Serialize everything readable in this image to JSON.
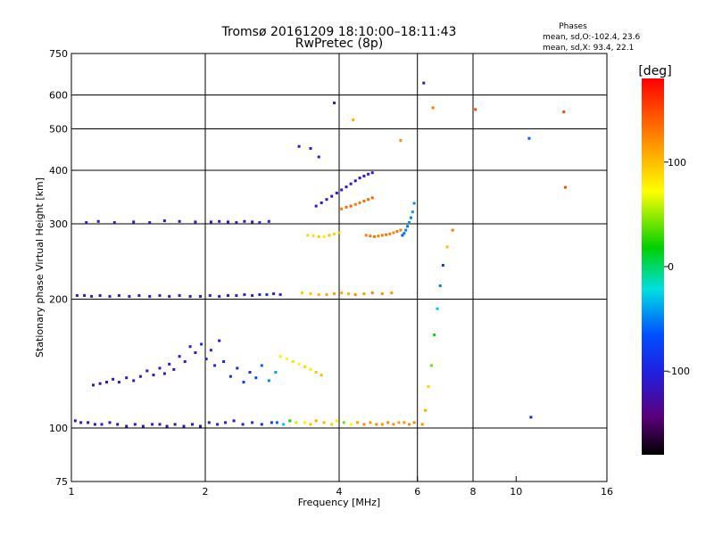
{
  "chart_data": {
    "type": "scatter",
    "title": "Tromsø 20161209 18:10:00–18:11:43",
    "subtitle": "RwPretec (8p)",
    "xlabel": "Frequency [MHz]",
    "ylabel": "Stationary phase Virtual Height [km]",
    "x_scale": "log2",
    "y_scale": "log",
    "xlim": [
      1,
      16
    ],
    "ylim": [
      75,
      750
    ],
    "x_ticks": [
      1,
      2,
      4,
      6,
      8,
      10,
      16
    ],
    "x_tick_labels": [
      "1",
      "2",
      "4",
      "6",
      "8",
      "10",
      "16"
    ],
    "x_gridlines": [
      2,
      4,
      6,
      8
    ],
    "y_ticks": [
      75,
      100,
      200,
      300,
      400,
      500,
      600,
      750
    ],
    "y_tick_labels": [
      "75",
      "100",
      "200",
      "300",
      "400",
      "500",
      "600",
      "750"
    ],
    "y_gridlines": [
      100,
      200,
      300,
      400,
      500,
      600
    ],
    "grid": true,
    "stats": {
      "heading": "Phases",
      "line1": "mean, sd,O:-102.4, 23.6",
      "line2": "mean, sd,X:  93.4, 22.1"
    },
    "colorbar": {
      "label": "[deg]",
      "range": [
        -180,
        180
      ],
      "ticks": [
        100,
        0,
        -100
      ],
      "tick_labels": [
        "100",
        "0",
        "-100"
      ]
    },
    "series": [
      {
        "x": [
          1.02,
          1.05,
          1.09,
          1.13,
          1.17,
          1.22,
          1.27,
          1.33,
          1.39,
          1.45,
          1.52,
          1.58,
          1.64,
          1.71,
          1.79,
          1.87,
          1.95,
          2.04,
          2.13,
          2.22,
          2.32,
          2.43,
          2.55,
          2.68,
          2.82
        ],
        "y": [
          104,
          103,
          103,
          102,
          102,
          103,
          102,
          101,
          102,
          101,
          102,
          102,
          101,
          102,
          101,
          102,
          101,
          103,
          102,
          103,
          104,
          102,
          103,
          102,
          103
        ],
        "c": [
          -120,
          -118,
          -125,
          -115,
          -110,
          -112,
          -122,
          -118,
          -105,
          -110,
          -108,
          -115,
          -120,
          -117,
          -112,
          -110,
          -125,
          -118,
          -100,
          -112,
          -115,
          -108,
          -90,
          -95,
          -80
        ]
      },
      {
        "x": [
          2.9,
          3.0,
          3.1,
          3.2,
          3.35,
          3.45,
          3.55,
          3.7,
          3.85,
          3.95,
          4.1,
          4.25,
          4.4,
          4.55,
          4.7,
          4.85,
          5.0,
          5.15,
          5.3,
          5.45,
          5.6,
          5.75,
          5.9
        ],
        "y": [
          103,
          102,
          104,
          103,
          103,
          102,
          104,
          103,
          102,
          104,
          103,
          102,
          103,
          102,
          103,
          102,
          102,
          103,
          102,
          103,
          103,
          102,
          103
        ],
        "c": [
          -60,
          -30,
          20,
          60,
          80,
          100,
          110,
          105,
          95,
          80,
          40,
          70,
          110,
          120,
          115,
          120,
          118,
          125,
          120,
          115,
          118,
          122,
          125
        ]
      },
      {
        "x": [
          1.12,
          1.16,
          1.2,
          1.24,
          1.28,
          1.33,
          1.38,
          1.43,
          1.48,
          1.53,
          1.58,
          1.62,
          1.66,
          1.7,
          1.75,
          1.8,
          1.85,
          1.9,
          1.96,
          2.01,
          2.06,
          2.1,
          2.15,
          2.2,
          2.28,
          2.36,
          2.44,
          2.52,
          2.6,
          2.68,
          2.78,
          2.88
        ],
        "y": [
          126,
          127,
          128,
          130,
          128,
          131,
          129,
          132,
          136,
          133,
          138,
          134,
          141,
          137,
          147,
          143,
          155,
          150,
          157,
          145,
          152,
          140,
          160,
          143,
          132,
          138,
          128,
          135,
          131,
          140,
          129,
          135
        ],
        "c": [
          -120,
          -125,
          -118,
          -122,
          -115,
          -110,
          -120,
          -118,
          -110,
          -115,
          -108,
          -112,
          -105,
          -110,
          -100,
          -108,
          -98,
          -105,
          -90,
          -100,
          -95,
          -90,
          -110,
          -95,
          -88,
          -92,
          -85,
          -90,
          -70,
          -60,
          -50,
          -40
        ]
      },
      {
        "x": [
          2.95,
          3.05,
          3.15,
          3.25,
          3.35,
          3.45,
          3.55,
          3.65
        ],
        "y": [
          147,
          145,
          143,
          141,
          139,
          137,
          135,
          133
        ],
        "c": [
          80,
          75,
          85,
          70,
          90,
          80,
          95,
          100
        ]
      },
      {
        "x": [
          1.03,
          1.07,
          1.11,
          1.16,
          1.22,
          1.28,
          1.35,
          1.42,
          1.5,
          1.58,
          1.66,
          1.75,
          1.85,
          1.95,
          2.05,
          2.15,
          2.25,
          2.35,
          2.45,
          2.55,
          2.65,
          2.75,
          2.85,
          2.95
        ],
        "y": [
          204,
          204,
          203,
          204,
          203,
          204,
          203,
          204,
          203,
          204,
          203,
          204,
          203,
          203,
          204,
          203,
          204,
          204,
          205,
          204,
          205,
          205,
          206,
          205
        ],
        "c": [
          -110,
          -115,
          -112,
          -118,
          -110,
          -108,
          -120,
          -115,
          -110,
          -112,
          -118,
          -110,
          -115,
          -112,
          -108,
          -110,
          -112,
          -100,
          -105,
          -110,
          -100,
          -95,
          -110,
          -105
        ]
      },
      {
        "x": [
          3.3,
          3.45,
          3.6,
          3.75,
          3.9,
          4.05,
          4.2,
          4.35,
          4.55,
          4.75,
          5.0,
          5.25
        ],
        "y": [
          207,
          206,
          205,
          205,
          206,
          207,
          206,
          205,
          206,
          207,
          206,
          207
        ],
        "c": [
          95,
          100,
          105,
          110,
          115,
          110,
          105,
          120,
          115,
          125,
          120,
          118
        ]
      },
      {
        "x": [
          1.08,
          1.15,
          1.25,
          1.38,
          1.5,
          1.62,
          1.75,
          1.9,
          2.06,
          2.15,
          2.25,
          2.35,
          2.45,
          2.55,
          2.65,
          2.78
        ],
        "y": [
          302,
          304,
          302,
          303,
          302,
          305,
          304,
          303,
          303,
          304,
          303,
          302,
          304,
          303,
          302,
          304
        ],
        "c": [
          -110,
          -115,
          -112,
          -110,
          -118,
          -120,
          -115,
          -110,
          -108,
          -112,
          -110,
          -115,
          -110,
          -112,
          -100,
          -105
        ]
      },
      {
        "x": [
          3.55,
          3.65,
          3.75,
          3.85,
          3.95,
          4.05,
          4.15,
          4.25,
          4.35,
          4.45,
          4.55,
          4.65,
          4.75
        ],
        "y": [
          330,
          336,
          342,
          348,
          354,
          360,
          366,
          372,
          378,
          384,
          388,
          392,
          395
        ],
        "c": [
          -110,
          -115,
          -112,
          -118,
          -110,
          -108,
          -112,
          -110,
          -118,
          -115,
          -110,
          -112,
          -108
        ]
      },
      {
        "x": [
          4.05,
          4.15,
          4.25,
          4.35,
          4.45,
          4.55,
          4.65,
          4.75
        ],
        "y": [
          325,
          328,
          330,
          333,
          336,
          339,
          342,
          345
        ],
        "c": [
          130,
          135,
          140,
          130,
          128,
          135,
          138,
          140
        ]
      },
      {
        "x": [
          3.4,
          3.5,
          3.6,
          3.7,
          3.8,
          3.9,
          4.0,
          4.6,
          4.7,
          4.8,
          4.9,
          5.0,
          5.1,
          5.2,
          5.3,
          5.4,
          5.5
        ],
        "y": [
          282,
          281,
          280,
          280,
          282,
          284,
          286,
          282,
          281,
          280,
          281,
          282,
          283,
          284,
          286,
          288,
          290
        ],
        "c": [
          90,
          85,
          95,
          80,
          100,
          90,
          95,
          125,
          130,
          128,
          126,
          130,
          132,
          128,
          125,
          130,
          128
        ]
      },
      {
        "x": [
          5.55,
          5.6,
          5.65,
          5.7,
          5.75,
          5.8,
          5.85,
          5.9
        ],
        "y": [
          282,
          285,
          290,
          296,
          302,
          310,
          320,
          335
        ],
        "c": [
          -60,
          -55,
          -50,
          -55,
          -45,
          -50,
          -40,
          -45
        ]
      },
      {
        "x": [
          6.15,
          6.25,
          6.35,
          6.45,
          6.55,
          6.65,
          6.75,
          6.85,
          7.0,
          7.2
        ],
        "y": [
          102,
          110,
          125,
          140,
          165,
          190,
          215,
          240,
          265,
          290
        ],
        "c": [
          120,
          110,
          90,
          40,
          20,
          -30,
          -50,
          -80,
          100,
          130
        ]
      },
      {
        "x": [
          3.25,
          3.45,
          3.6,
          3.9,
          4.3,
          5.5,
          6.2,
          6.5,
          8.1,
          10.7,
          10.8,
          12.8,
          12.9
        ],
        "y": [
          455,
          450,
          430,
          575,
          525,
          470,
          640,
          560,
          555,
          475,
          106,
          548,
          365
        ],
        "c": [
          -110,
          -100,
          -105,
          -120,
          110,
          120,
          -120,
          130,
          150,
          -60,
          -100,
          150,
          150
        ]
      }
    ]
  }
}
